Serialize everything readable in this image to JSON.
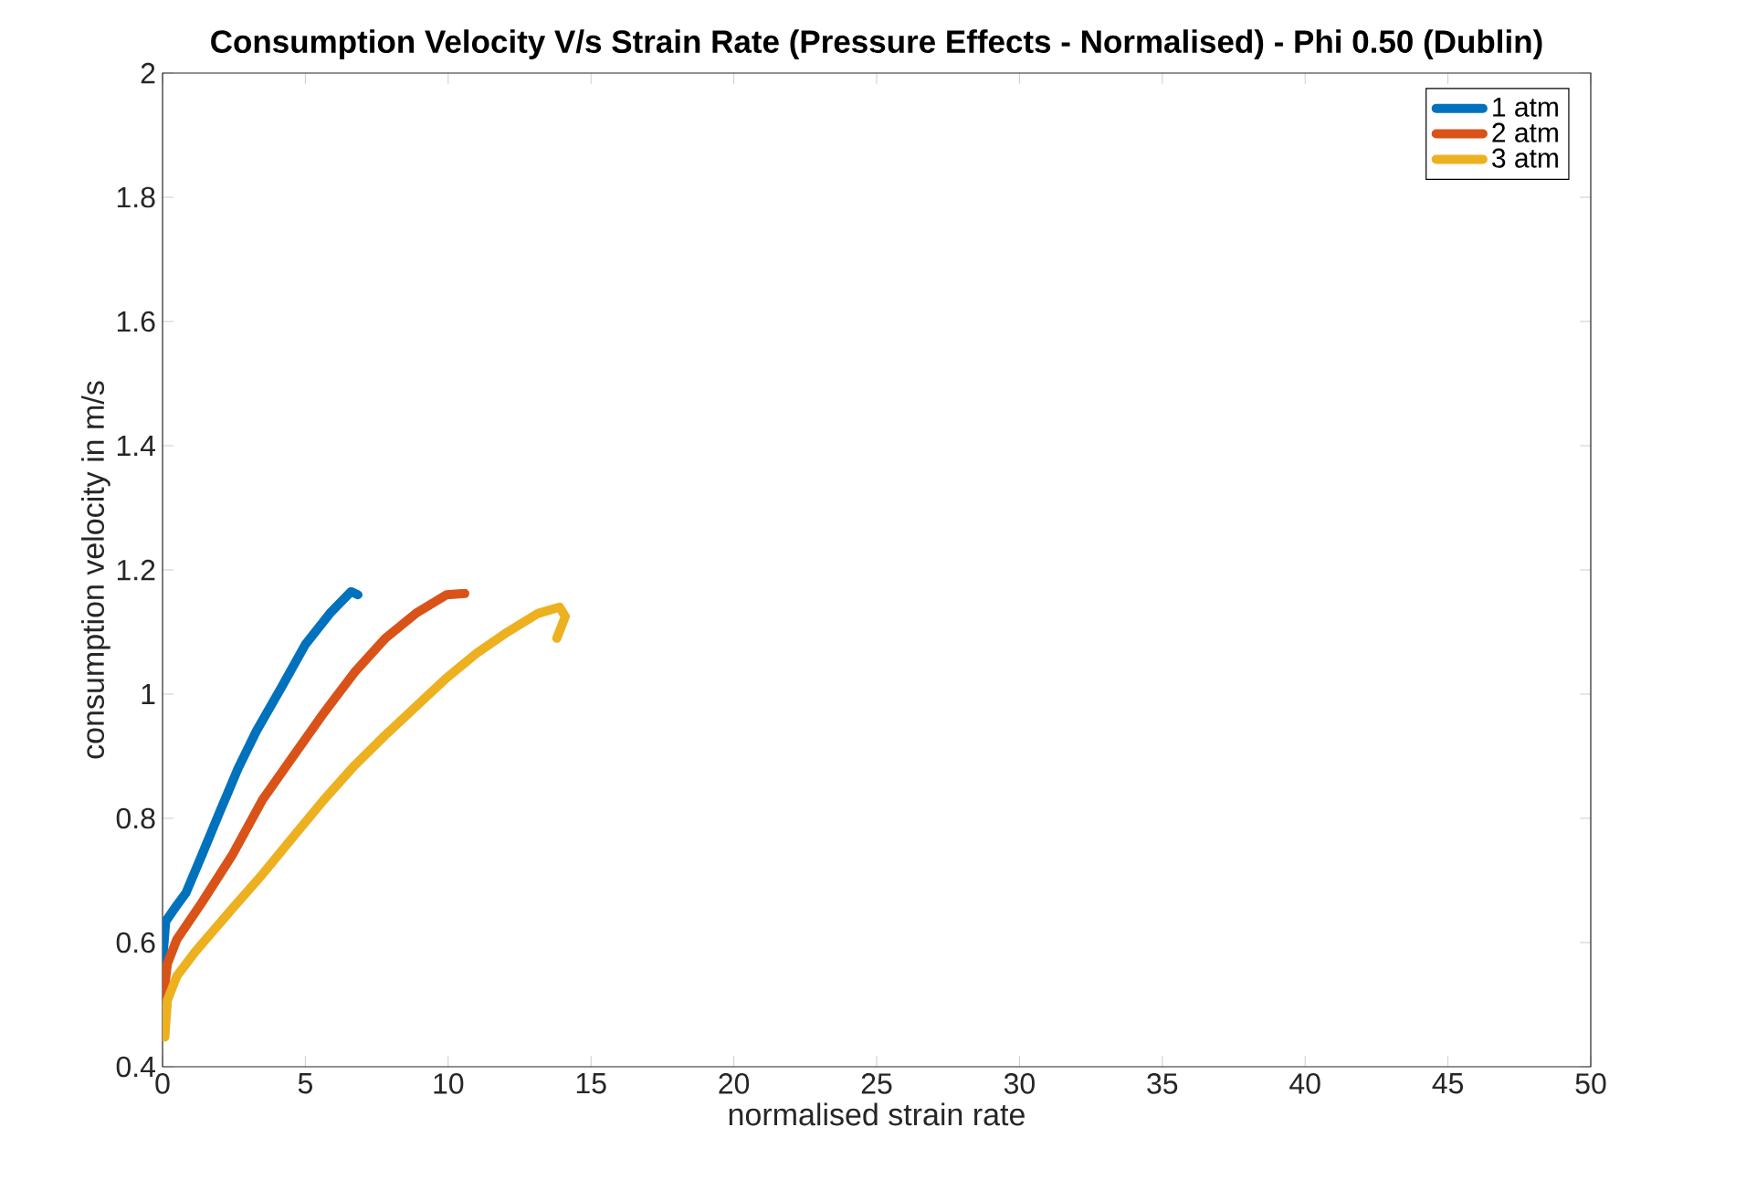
{
  "chart_data": {
    "type": "line",
    "title": "Consumption Velocity V/s Strain Rate (Pressure Effects - Normalised) - Phi 0.50 (Dublin)",
    "xlabel": "normalised strain rate",
    "ylabel": "consumption velocity in m/s",
    "xlim": [
      0,
      50
    ],
    "ylim": [
      0.4,
      2
    ],
    "xticks": [
      0,
      5,
      10,
      15,
      20,
      25,
      30,
      35,
      40,
      45,
      50
    ],
    "yticks": [
      0.4,
      0.6,
      0.8,
      1,
      1.2,
      1.4,
      1.6,
      1.8,
      2
    ],
    "grid": false,
    "legend": "top right",
    "marker": "none",
    "line_style": "solid",
    "series": [
      {
        "name": "1 atm",
        "color": "#0072bd",
        "x": [
          0,
          0.11,
          0.5,
          0.82,
          1.37,
          2.0,
          2.64,
          3.28,
          4.15,
          5.0,
          5.86,
          6.6,
          6.84
        ],
        "values": [
          0.57,
          0.634,
          0.66,
          0.68,
          0.74,
          0.81,
          0.88,
          0.94,
          1.01,
          1.08,
          1.13,
          1.165,
          1.16
        ]
      },
      {
        "name": "2 atm",
        "color": "#d95319",
        "x": [
          0,
          0.17,
          0.5,
          1.37,
          2.43,
          3.5,
          4.57,
          5.65,
          6.72,
          7.8,
          8.87,
          9.94,
          10.58
        ],
        "values": [
          0.5,
          0.566,
          0.605,
          0.664,
          0.74,
          0.83,
          0.9,
          0.97,
          1.035,
          1.09,
          1.13,
          1.16,
          1.162
        ]
      },
      {
        "name": "3 atm",
        "color": "#edb120",
        "x": [
          0.08,
          0.17,
          0.5,
          1.14,
          2.43,
          3.5,
          4.57,
          5.65,
          6.72,
          7.8,
          8.87,
          9.94,
          11.0,
          12.08,
          13.15,
          13.9,
          14.1,
          13.8
        ],
        "values": [
          0.448,
          0.507,
          0.546,
          0.585,
          0.654,
          0.71,
          0.77,
          0.83,
          0.885,
          0.934,
          0.98,
          1.026,
          1.066,
          1.1,
          1.13,
          1.14,
          1.125,
          1.09
        ]
      }
    ]
  }
}
